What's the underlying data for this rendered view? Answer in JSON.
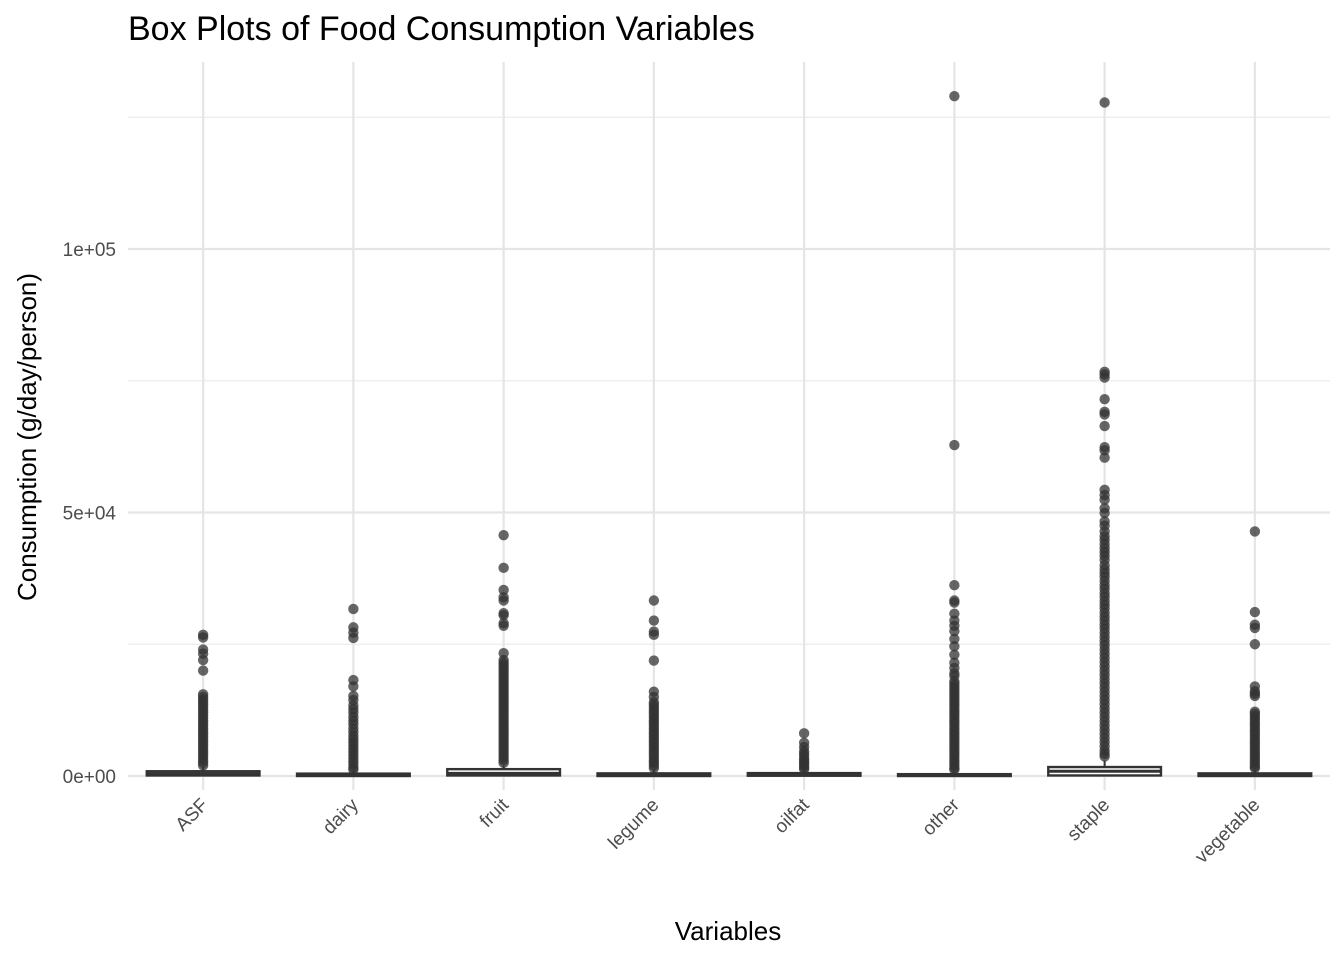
{
  "chart_data": {
    "type": "box",
    "title": "Box Plots of Food Consumption Variables",
    "xlabel": "Variables",
    "ylabel": "Consumption (g/day/person)",
    "ylim": [
      -4800,
      130800
    ],
    "yticks": [
      0,
      50000,
      100000
    ],
    "ytick_labels": [
      "0e+00",
      "5e+04",
      "1e+05"
    ],
    "grid": true,
    "categories": [
      "ASF",
      "dairy",
      "fruit",
      "legume",
      "oilfat",
      "other",
      "staple",
      "vegetable"
    ],
    "boxes": [
      {
        "q1": 100,
        "median": 400,
        "q3": 900,
        "whisker_low": 0,
        "whisker_high": 1700,
        "outliers": [
          26800,
          26300,
          24000,
          23200,
          22000,
          20000,
          15500,
          15000,
          14500,
          14000,
          13500,
          13000,
          12500,
          12000,
          11500,
          11000,
          10500,
          10000,
          9500,
          9000,
          8500,
          8000,
          7500,
          7000,
          6500,
          6000,
          5500,
          5000,
          4500,
          4000,
          3500,
          3000,
          2500,
          2000
        ]
      },
      {
        "q1": 0,
        "median": 150,
        "q3": 450,
        "whisker_low": 0,
        "whisker_high": 1000,
        "outliers": [
          31700,
          28200,
          27200,
          26200,
          18200,
          17000,
          15200,
          14400,
          13400,
          12700,
          12000,
          11200,
          10500,
          9800,
          9000,
          8300,
          7600,
          7000,
          6400,
          5800,
          5200,
          4600,
          4000,
          3400,
          2800,
          2200,
          1600,
          1200
        ]
      },
      {
        "q1": 100,
        "median": 500,
        "q3": 1300,
        "whisker_low": 0,
        "whisker_high": 2000,
        "outliers": [
          45700,
          39500,
          35300,
          33900,
          33300,
          30900,
          30500,
          29000,
          28500,
          23300,
          22000,
          21500,
          21000,
          20500,
          20000,
          19500,
          19000,
          18500,
          18000,
          17500,
          17000,
          16500,
          16000,
          15500,
          15000,
          14500,
          14000,
          13500,
          13000,
          12500,
          12000,
          11500,
          11000,
          10500,
          10000,
          9500,
          9000,
          8500,
          8000,
          7500,
          7000,
          6500,
          6000,
          5500,
          5000,
          4500,
          4000,
          3500,
          3000,
          2500
        ]
      },
      {
        "q1": 0,
        "median": 150,
        "q3": 500,
        "whisker_low": 0,
        "whisker_high": 1100,
        "outliers": [
          33300,
          29500,
          27400,
          26800,
          21900,
          16000,
          15000,
          14000,
          13500,
          13000,
          12500,
          12000,
          11500,
          11000,
          10500,
          10000,
          9500,
          9000,
          8500,
          8000,
          7500,
          7000,
          6500,
          6000,
          5500,
          5000,
          4500,
          4000,
          3500,
          3000,
          2500,
          2000,
          1500
        ]
      },
      {
        "q1": 50,
        "median": 250,
        "q3": 550,
        "whisker_low": 0,
        "whisker_high": 1000,
        "outliers": [
          8100,
          6300,
          5500,
          4700,
          4200,
          3700,
          3200,
          2800,
          2400,
          2000,
          1600,
          1300
        ]
      },
      {
        "q1": 0,
        "median": 100,
        "q3": 350,
        "whisker_low": 0,
        "whisker_high": 800,
        "outliers": [
          129000,
          62800,
          36200,
          33300,
          32900,
          30800,
          29500,
          28500,
          27500,
          26000,
          24600,
          23000,
          21500,
          20500,
          19500,
          19000,
          18000,
          17500,
          17000,
          16500,
          16000,
          15500,
          15000,
          14500,
          14000,
          13500,
          13000,
          12500,
          12000,
          11500,
          11000,
          10500,
          10000,
          9500,
          9000,
          8500,
          8000,
          7500,
          7000,
          6500,
          6000,
          5500,
          5000,
          4500,
          4000,
          3500,
          3000,
          2500,
          2000,
          1500,
          1200
        ]
      },
      {
        "q1": 100,
        "median": 900,
        "q3": 1700,
        "whisker_low": 0,
        "whisker_high": 2900,
        "outliers": [
          127800,
          76700,
          76200,
          75600,
          71500,
          69100,
          68600,
          66400,
          62400,
          61800,
          60400,
          54300,
          53300,
          52400,
          50800,
          49900,
          48300,
          47500,
          46400,
          45500,
          44800,
          44000,
          43200,
          42500,
          41800,
          41000,
          40000,
          39200,
          38500,
          37800,
          37000,
          36200,
          35500,
          34700,
          34000,
          33200,
          32500,
          31800,
          31000,
          30200,
          29500,
          28700,
          28000,
          27200,
          26400,
          25600,
          24800,
          24000,
          23200,
          22400,
          21600,
          20800,
          20000,
          19200,
          18400,
          17600,
          16800,
          16000,
          15200,
          14400,
          13600,
          12800,
          12000,
          11200,
          10400,
          9600,
          8800,
          8000,
          7200,
          6400,
          5600,
          4800,
          4200,
          3700
        ]
      },
      {
        "q1": 0,
        "median": 150,
        "q3": 500,
        "whisker_low": 0,
        "whisker_high": 1100,
        "outliers": [
          46400,
          31100,
          28700,
          28100,
          25000,
          17000,
          16100,
          15600,
          15200,
          12200,
          11800,
          11300,
          10800,
          10300,
          9800,
          9300,
          8800,
          8300,
          7800,
          7300,
          6800,
          6300,
          5800,
          5300,
          4800,
          4300,
          3800,
          3300,
          2800,
          2300,
          1800,
          1500
        ]
      }
    ]
  }
}
